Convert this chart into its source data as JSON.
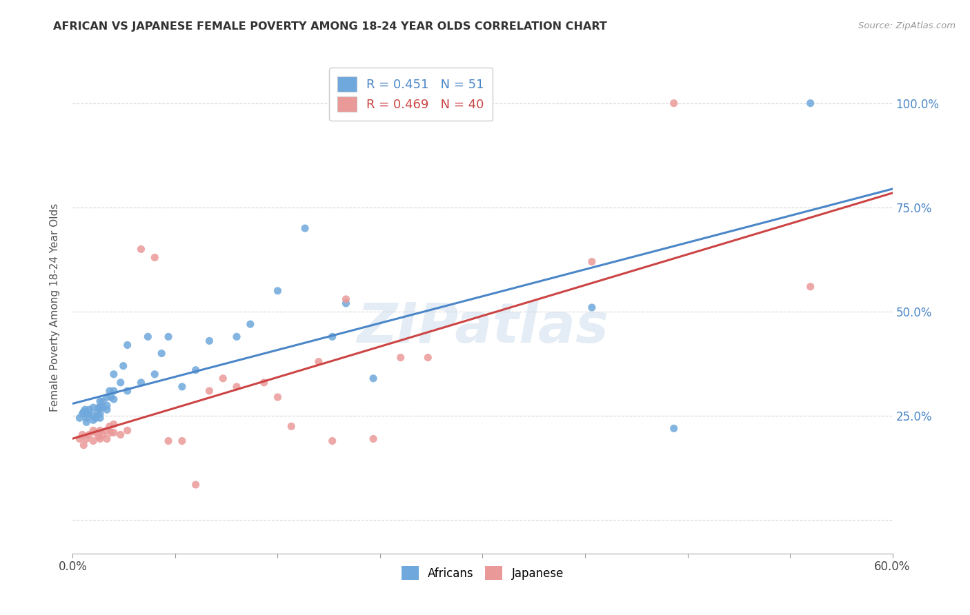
{
  "title": "AFRICAN VS JAPANESE FEMALE POVERTY AMONG 18-24 YEAR OLDS CORRELATION CHART",
  "source": "Source: ZipAtlas.com",
  "ylabel": "Female Poverty Among 18-24 Year Olds",
  "xlim": [
    0.0,
    0.6
  ],
  "ylim": [
    -0.08,
    1.1
  ],
  "xticks": [
    0.0,
    0.075,
    0.15,
    0.225,
    0.3,
    0.375,
    0.45,
    0.525,
    0.6
  ],
  "xtick_labels": [
    "0.0%",
    "",
    "",
    "",
    "",
    "",
    "",
    "",
    "60.0%"
  ],
  "yticks": [
    0.0,
    0.25,
    0.5,
    0.75,
    1.0
  ],
  "ytick_labels_right": [
    "",
    "25.0%",
    "50.0%",
    "75.0%",
    "100.0%"
  ],
  "africans_color": "#6fa8dc",
  "japanese_color": "#ea9999",
  "africans_line_color": "#4a86c8",
  "japanese_line_color": "#cc4444",
  "R_africans": 0.451,
  "N_africans": 51,
  "R_japanese": 0.469,
  "N_japanese": 40,
  "watermark": "ZIPatlas",
  "africans_x": [
    0.005,
    0.007,
    0.008,
    0.009,
    0.01,
    0.01,
    0.01,
    0.012,
    0.012,
    0.015,
    0.015,
    0.015,
    0.017,
    0.018,
    0.019,
    0.02,
    0.02,
    0.02,
    0.02,
    0.022,
    0.022,
    0.025,
    0.025,
    0.025,
    0.027,
    0.028,
    0.03,
    0.03,
    0.03,
    0.035,
    0.037,
    0.04,
    0.04,
    0.05,
    0.055,
    0.06,
    0.065,
    0.07,
    0.08,
    0.09,
    0.1,
    0.12,
    0.13,
    0.15,
    0.17,
    0.19,
    0.2,
    0.22,
    0.38,
    0.44,
    0.54
  ],
  "africans_y": [
    0.245,
    0.255,
    0.26,
    0.265,
    0.235,
    0.245,
    0.255,
    0.255,
    0.265,
    0.24,
    0.25,
    0.27,
    0.245,
    0.26,
    0.27,
    0.245,
    0.255,
    0.27,
    0.285,
    0.27,
    0.285,
    0.265,
    0.275,
    0.295,
    0.31,
    0.295,
    0.29,
    0.31,
    0.35,
    0.33,
    0.37,
    0.31,
    0.42,
    0.33,
    0.44,
    0.35,
    0.4,
    0.44,
    0.32,
    0.36,
    0.43,
    0.44,
    0.47,
    0.55,
    0.7,
    0.44,
    0.52,
    0.34,
    0.51,
    0.22,
    1.0
  ],
  "japanese_x": [
    0.005,
    0.007,
    0.008,
    0.01,
    0.012,
    0.015,
    0.015,
    0.017,
    0.019,
    0.02,
    0.02,
    0.022,
    0.025,
    0.025,
    0.027,
    0.028,
    0.03,
    0.03,
    0.035,
    0.04,
    0.05,
    0.06,
    0.07,
    0.08,
    0.09,
    0.1,
    0.11,
    0.12,
    0.14,
    0.15,
    0.16,
    0.18,
    0.19,
    0.2,
    0.22,
    0.24,
    0.26,
    0.38,
    0.44,
    0.54
  ],
  "japanese_y": [
    0.195,
    0.205,
    0.18,
    0.195,
    0.205,
    0.215,
    0.19,
    0.21,
    0.2,
    0.195,
    0.215,
    0.205,
    0.215,
    0.195,
    0.225,
    0.21,
    0.21,
    0.23,
    0.205,
    0.215,
    0.65,
    0.63,
    0.19,
    0.19,
    0.085,
    0.31,
    0.34,
    0.32,
    0.33,
    0.295,
    0.225,
    0.38,
    0.19,
    0.53,
    0.195,
    0.39,
    0.39,
    0.62,
    1.0,
    0.56
  ]
}
